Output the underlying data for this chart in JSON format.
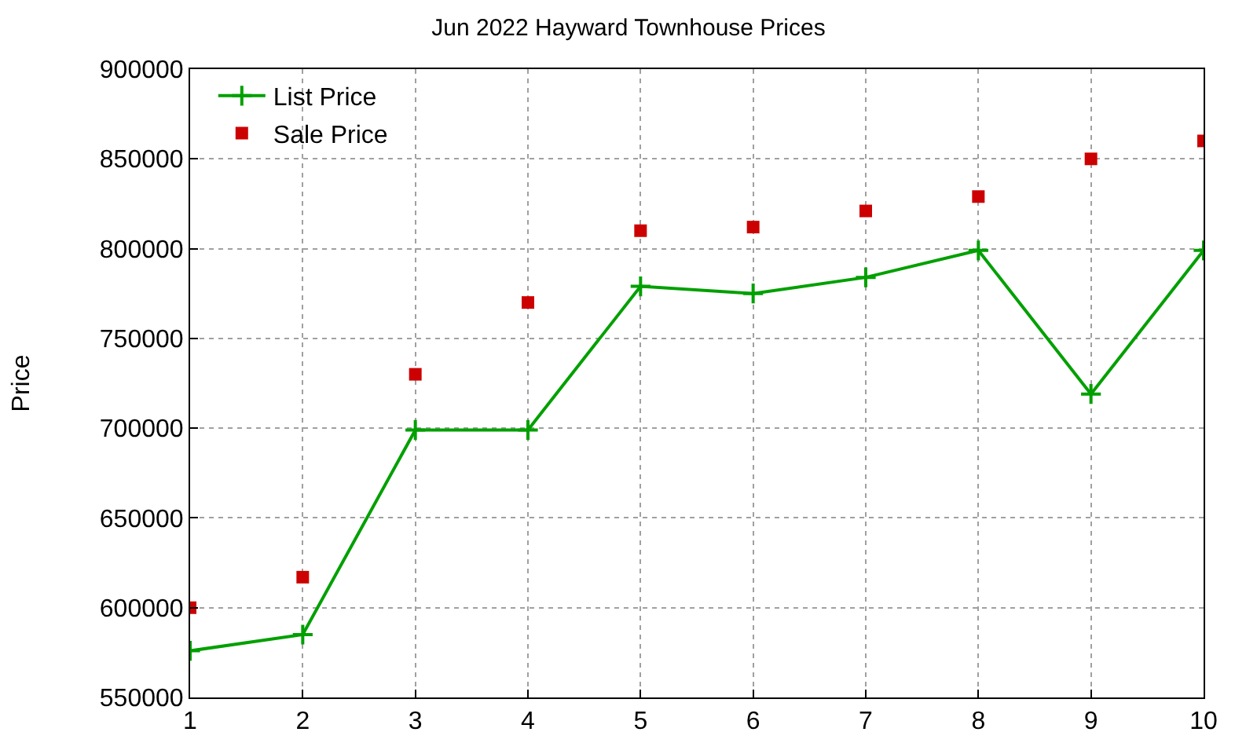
{
  "chart_data": {
    "type": "line",
    "title": "Jun 2022 Hayward Townhouse Prices",
    "ylabel": "Price",
    "x": [
      1,
      2,
      3,
      4,
      5,
      6,
      7,
      8,
      9,
      10
    ],
    "series": [
      {
        "name": "List Price",
        "marker": "cross",
        "color": "#00a000",
        "values": [
          576000,
          585000,
          699000,
          699000,
          779000,
          775000,
          784000,
          799000,
          719000,
          799000
        ]
      },
      {
        "name": "Sale Price",
        "type": "scatter",
        "marker": "square",
        "color": "#cc0000",
        "values": [
          600000,
          617000,
          730000,
          770000,
          810000,
          812000,
          821000,
          829000,
          850000,
          860000
        ]
      }
    ],
    "xlim": [
      1,
      10
    ],
    "xticks": [
      1,
      2,
      3,
      4,
      5,
      6,
      7,
      8,
      9,
      10
    ],
    "ylim": [
      550000,
      900000
    ],
    "yticks": [
      550000,
      600000,
      650000,
      700000,
      750000,
      800000,
      850000,
      900000
    ],
    "grid": true,
    "legend": "top left",
    "line_style": "solid"
  }
}
